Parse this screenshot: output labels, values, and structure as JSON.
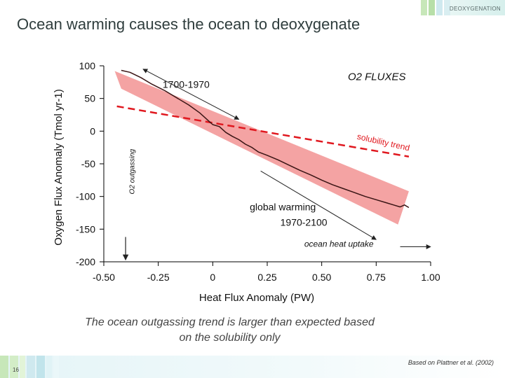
{
  "slide": {
    "section_tag": "DEOXYGENATION",
    "title": "Ocean warming causes the ocean to deoxygenate",
    "caption_line1": "The ocean outgassing trend is larger than expected based",
    "caption_line2": "on the solubility only",
    "credit": "Based on Plattner et al. (2002)",
    "page_number": "16"
  },
  "colors": {
    "band": "#f4a3a3",
    "solubility_line": "#e0181f",
    "series_line": "#3a1515",
    "axis": "#000000",
    "deco_green": "#c7e7b9",
    "deco_teal": "#cfe9ef"
  },
  "chart_data": {
    "type": "line",
    "title": "O2 FLUXES",
    "xlabel": "Heat Flux Anomaly (PW)",
    "ylabel": "Oxygen Flux Anomaly (Tmol yr-1)",
    "xlim": [
      -0.5,
      1.0
    ],
    "ylim": [
      -200,
      100
    ],
    "x_ticks": [
      -0.5,
      -0.25,
      0,
      0.25,
      0.5,
      0.75,
      1.0
    ],
    "x_tick_labels": [
      "-0.50",
      "-0.25",
      "0",
      "0.25",
      "0.50",
      "0.75",
      "1.00"
    ],
    "y_ticks": [
      100,
      50,
      0,
      -50,
      -100,
      -150,
      -200
    ],
    "y_tick_labels": [
      "100",
      "50",
      "0",
      "-50",
      "-100",
      "-150",
      "-200"
    ],
    "grid": false,
    "series": [
      {
        "points": [
          [
            -0.42,
            93
          ],
          [
            -0.38,
            90
          ],
          [
            -0.33,
            82
          ],
          [
            -0.28,
            72
          ],
          [
            -0.22,
            62
          ],
          [
            -0.16,
            50
          ],
          [
            -0.11,
            40
          ],
          [
            -0.06,
            28
          ],
          [
            -0.02,
            16
          ],
          [
            0.0,
            10
          ],
          [
            0.03,
            7
          ],
          [
            0.06,
            -2
          ],
          [
            0.09,
            -8
          ],
          [
            0.12,
            -13
          ],
          [
            0.15,
            -20
          ],
          [
            0.18,
            -25
          ],
          [
            0.21,
            -32
          ],
          [
            0.25,
            -37
          ],
          [
            0.3,
            -44
          ],
          [
            0.35,
            -52
          ],
          [
            0.4,
            -60
          ],
          [
            0.45,
            -67
          ],
          [
            0.5,
            -75
          ],
          [
            0.55,
            -82
          ],
          [
            0.6,
            -88
          ],
          [
            0.65,
            -94
          ],
          [
            0.7,
            -100
          ],
          [
            0.75,
            -105
          ],
          [
            0.8,
            -110
          ],
          [
            0.83,
            -113
          ],
          [
            0.86,
            -116
          ],
          [
            0.88,
            -113
          ],
          [
            0.9,
            -117
          ]
        ]
      }
    ],
    "solubility_trend": {
      "label": "solubility trend",
      "points": [
        [
          -0.44,
          38
        ],
        [
          0.9,
          -39
        ]
      ]
    },
    "uncertainty_band": {
      "upper": [
        [
          -0.45,
          92
        ],
        [
          0.9,
          -92
        ]
      ],
      "lower": [
        [
          -0.42,
          65
        ],
        [
          0.85,
          -143
        ]
      ]
    },
    "annotations": {
      "period_early": "1700-1970",
      "period_late": "1970-2100",
      "global_warming": "global warming",
      "ocean_heat_uptake": "ocean heat uptake",
      "o2_outgassing": "O2 outgassing"
    }
  }
}
